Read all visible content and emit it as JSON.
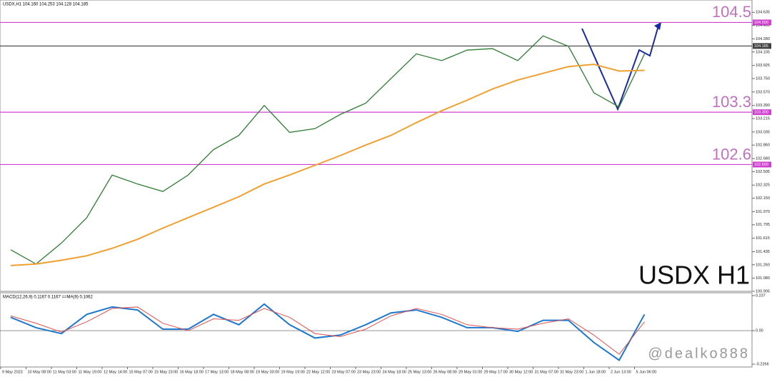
{
  "chart_data": {
    "type": "line",
    "header": "USDX,H1  104.160 104.253 104.128 104.185",
    "title": "USDX H1",
    "watermark": "@dealko888",
    "categories": [
      "9 May 2023",
      "10 May 08:00",
      "11 May 03:00",
      "11 May 19:00",
      "12 May 14:00",
      "15 May 07:00",
      "15 May 23:00",
      "16 May 18:00",
      "17 May 13:00",
      "18 May 08:00",
      "19 May 03:00",
      "19 May 19:00",
      "22 May 12:00",
      "23 May 07:00",
      "23 May 23:00",
      "24 May 18:00",
      "25 May 13:00",
      "26 May 08:00",
      "29 May 01:00",
      "29 May 17:00",
      "30 May 12:00",
      "31 May 07:00",
      "31 May 23:00",
      "1 Jun 18:00",
      "2 Jun 13:00",
      "5 Jun 06:00"
    ],
    "series": [
      {
        "name": "Price",
        "color": "#2e7d32",
        "values": [
          101.46,
          101.27,
          101.55,
          101.89,
          102.46,
          102.34,
          102.24,
          102.46,
          102.8,
          102.99,
          103.39,
          103.03,
          103.08,
          103.27,
          103.42,
          103.75,
          104.08,
          103.99,
          104.13,
          104.15,
          103.99,
          104.32,
          104.18,
          103.56,
          103.37,
          104.08
        ]
      },
      {
        "name": "MA",
        "color": "#f0a030",
        "values": [
          101.25,
          101.27,
          101.32,
          101.38,
          101.48,
          101.6,
          101.75,
          101.89,
          102.03,
          102.17,
          102.34,
          102.46,
          102.59,
          102.72,
          102.86,
          102.99,
          103.16,
          103.32,
          103.46,
          103.61,
          103.73,
          103.82,
          103.91,
          103.94,
          103.85,
          103.86
        ]
      }
    ],
    "ylim": [
      100.905,
      104.8
    ],
    "yticks": [
      104.635,
      {
        "value": 104.46,
        "label": "104.460"
      },
      {
        "value": 104.28,
        "label": "104.280"
      },
      104.105,
      103.925,
      {
        "value": 103.75,
        "label": "103.750"
      },
      {
        "value": 103.57,
        "label": "103.570"
      },
      {
        "value": 103.39,
        "label": "103.390"
      },
      103.215,
      103.035,
      {
        "value": 102.86,
        "label": "102.860"
      },
      {
        "value": 102.68,
        "label": "102.680"
      },
      102.505,
      102.325,
      {
        "value": 102.15,
        "label": "102.150"
      },
      {
        "value": 101.97,
        "label": "101.970"
      },
      101.795,
      101.615,
      101.435,
      {
        "value": 101.26,
        "label": "101.260"
      },
      {
        "value": 101.08,
        "label": "101.080"
      },
      100.905
    ],
    "levels": [
      {
        "value": 104.5,
        "label": "104.500",
        "annotation": "104.5",
        "color": "#d040d0"
      },
      {
        "value": 104.185,
        "label": "104.185",
        "color": "#404040"
      },
      {
        "value": 103.3,
        "label": "103.300",
        "annotation": "103.3",
        "color": "#d040d0"
      },
      {
        "value": 102.6,
        "label": "102.600",
        "annotation": "102.6",
        "color": "#d040d0"
      }
    ],
    "macd": {
      "title": "MACD(12,26,9) 0.1167 0.1167 ==MA(9) 0.1062",
      "series": [
        {
          "name": "MACD",
          "color": "#1e78d0",
          "values": [
            0.09,
            0.02,
            -0.02,
            0.11,
            0.16,
            0.14,
            0.01,
            0.01,
            0.11,
            0.04,
            0.18,
            0.04,
            -0.05,
            -0.03,
            0.04,
            0.12,
            0.14,
            0.09,
            0.02,
            0.02,
            -0.005,
            0.07,
            0.07,
            -0.08,
            -0.2,
            0.11
          ]
        },
        {
          "name": "Signal",
          "color": "#e05050",
          "values": [
            0.1,
            0.05,
            -0.01,
            0.06,
            0.15,
            0.16,
            0.05,
            0.0,
            0.08,
            0.07,
            0.15,
            0.09,
            -0.02,
            -0.04,
            0.01,
            0.1,
            0.15,
            0.11,
            0.04,
            0.02,
            0.01,
            0.05,
            0.08,
            -0.03,
            -0.16,
            0.06
          ]
        }
      ],
      "ylim": [
        -0.2266,
        0.237
      ],
      "yticks": [
        0.237,
        {
          "value": 0,
          "label": "0.00"
        },
        -0.2266
      ]
    }
  }
}
